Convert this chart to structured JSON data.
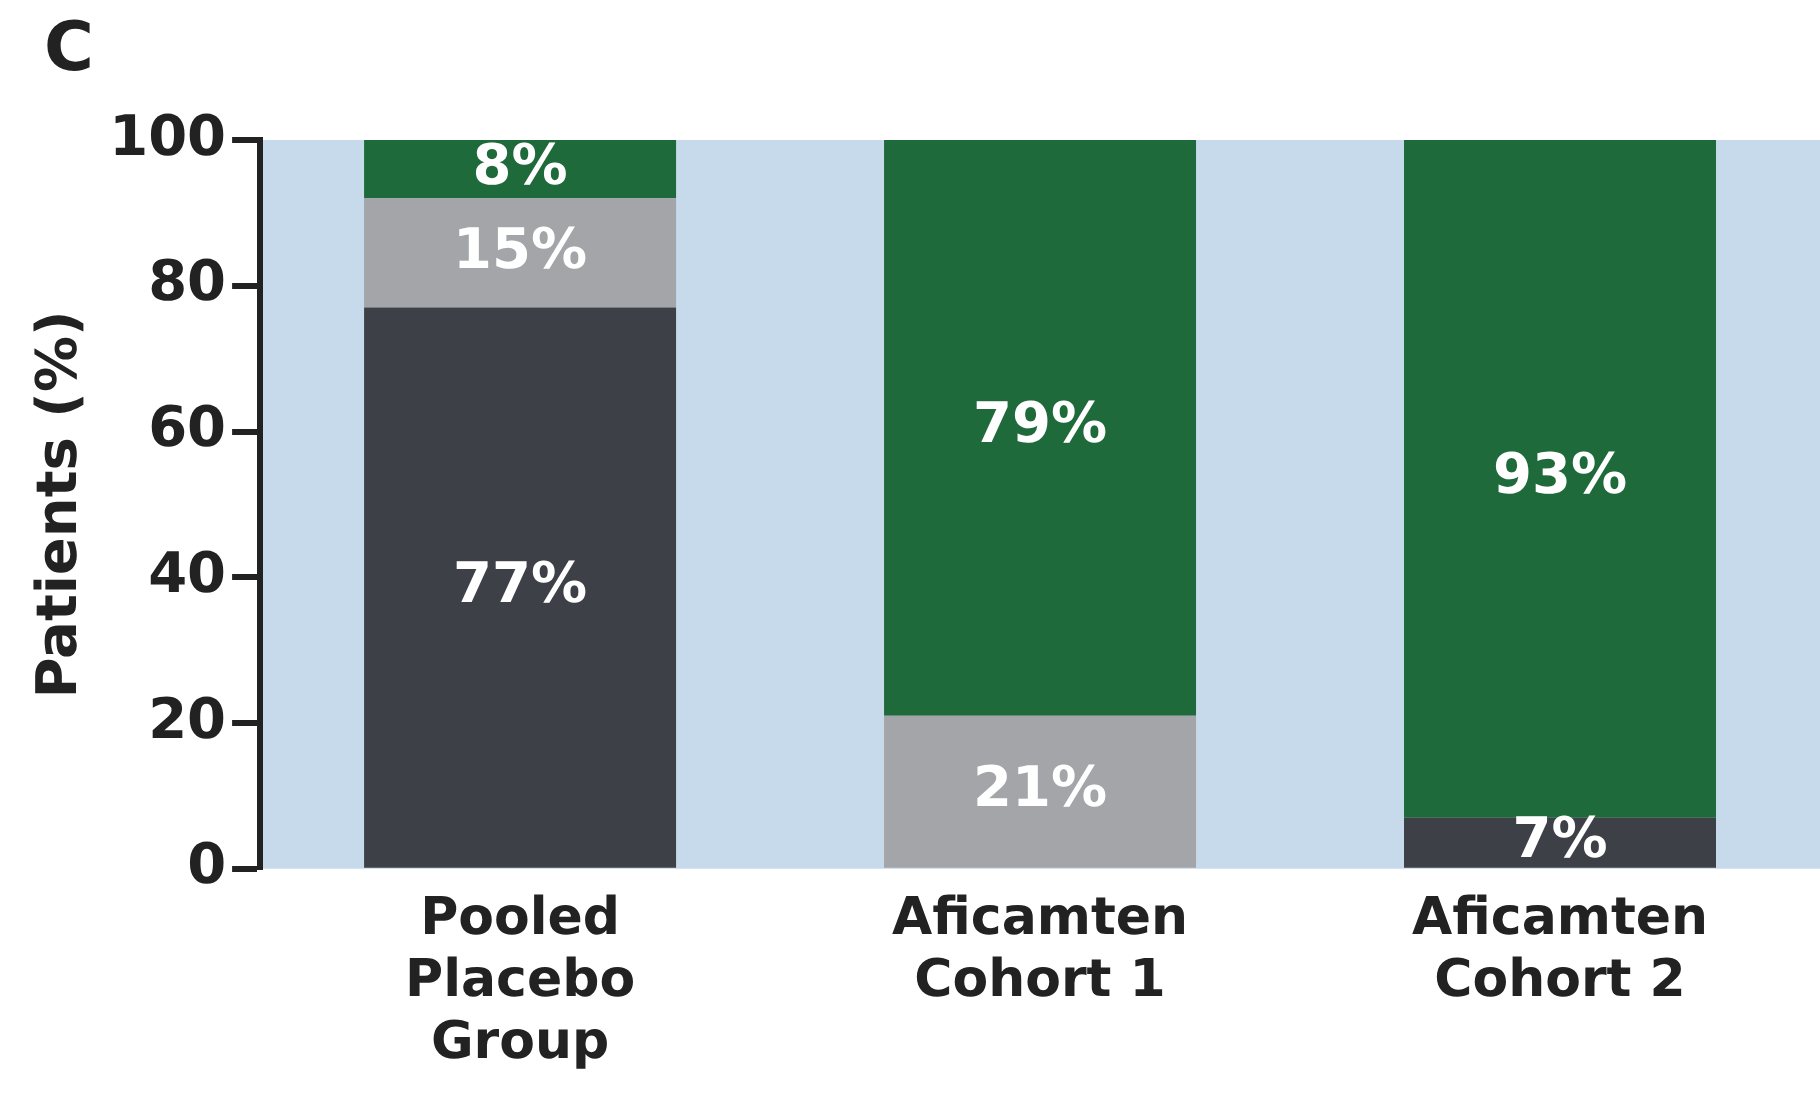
{
  "chart_data": {
    "type": "bar",
    "title": "C",
    "ylabel": "Patients (%)",
    "categories": [
      "Pooled\nPlacebo\nGroup",
      "Aficamten\nCohort 1",
      "Aficamten\nCohort 2"
    ],
    "stacked": true,
    "ylim": [
      0,
      100
    ],
    "yticks": [
      0,
      20,
      40,
      60,
      80,
      100
    ],
    "grid": false,
    "legend": false,
    "series": [
      {
        "color": "#3d4046",
        "values": [
          77,
          0,
          7
        ],
        "value_labels": [
          "77%",
          null,
          "7%"
        ]
      },
      {
        "color": "#a3a5a8",
        "values": [
          15,
          21,
          0
        ],
        "value_labels": [
          "15%",
          "21%",
          null
        ]
      },
      {
        "color": "#1f6a3b",
        "values": [
          8,
          79,
          93
        ],
        "value_labels": [
          "8%",
          "79%",
          "93%"
        ]
      }
    ]
  }
}
